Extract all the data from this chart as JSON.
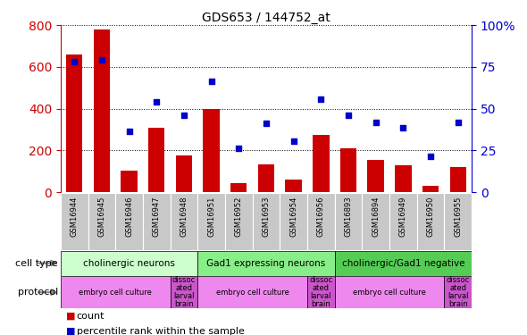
{
  "title": "GDS653 / 144752_at",
  "samples": [
    "GSM16944",
    "GSM16945",
    "GSM16946",
    "GSM16947",
    "GSM16948",
    "GSM16951",
    "GSM16952",
    "GSM16953",
    "GSM16954",
    "GSM16956",
    "GSM16893",
    "GSM16894",
    "GSM16949",
    "GSM16950",
    "GSM16955"
  ],
  "counts": [
    660,
    780,
    105,
    310,
    175,
    400,
    45,
    135,
    60,
    275,
    210,
    155,
    130,
    30,
    120
  ],
  "percentile_left": [
    625,
    635,
    290,
    435,
    370,
    530,
    210,
    330,
    245,
    445,
    370,
    335,
    310,
    170,
    335
  ],
  "left_ylim": [
    0,
    800
  ],
  "right_ylim": [
    0,
    100
  ],
  "left_yticks": [
    0,
    200,
    400,
    600,
    800
  ],
  "right_yticks": [
    0,
    25,
    50,
    75,
    100
  ],
  "bar_color": "#cc0000",
  "dot_color": "#0000cc",
  "cell_type_groups": [
    {
      "label": "cholinergic neurons",
      "start": 0,
      "end": 5,
      "color": "#ccffcc"
    },
    {
      "label": "Gad1 expressing neurons",
      "start": 5,
      "end": 10,
      "color": "#88ee88"
    },
    {
      "label": "cholinergic/Gad1 negative",
      "start": 10,
      "end": 15,
      "color": "#55cc55"
    }
  ],
  "protocol_groups": [
    {
      "label": "embryo cell culture",
      "start": 0,
      "end": 4,
      "color": "#ee88ee"
    },
    {
      "label": "dissoc\nated\nlarval\nbrain",
      "start": 4,
      "end": 5,
      "color": "#cc55cc"
    },
    {
      "label": "embryo cell culture",
      "start": 5,
      "end": 9,
      "color": "#ee88ee"
    },
    {
      "label": "dissoc\nated\nlarval\nbrain",
      "start": 9,
      "end": 10,
      "color": "#cc55cc"
    },
    {
      "label": "embryo cell culture",
      "start": 10,
      "end": 14,
      "color": "#ee88ee"
    },
    {
      "label": "dissoc\nated\nlarval\nbrain",
      "start": 14,
      "end": 15,
      "color": "#cc55cc"
    }
  ],
  "tick_label_color": "#cc0000",
  "right_tick_label_color": "#0000cc",
  "sample_box_color": "#c8c8c8",
  "plot_bg": "#ffffff",
  "legend_items": [
    {
      "label": "count",
      "color": "#cc0000"
    },
    {
      "label": "percentile rank within the sample",
      "color": "#0000cc"
    }
  ]
}
